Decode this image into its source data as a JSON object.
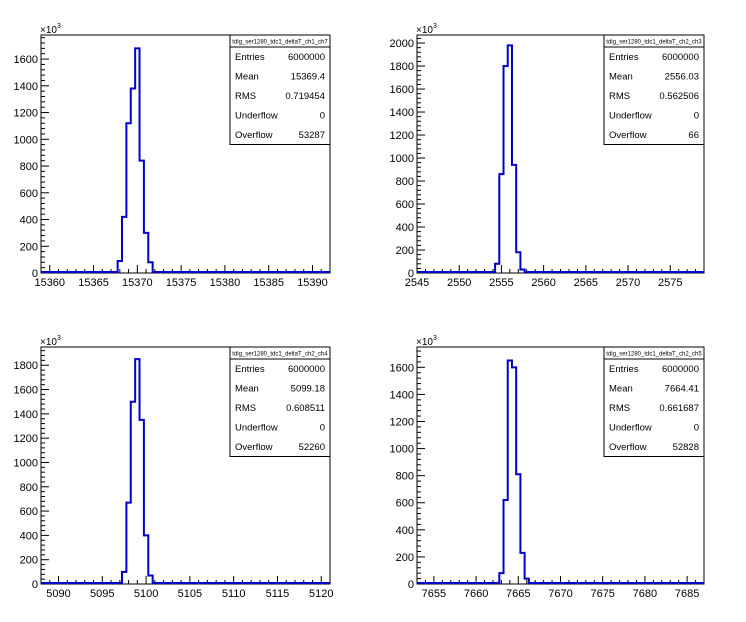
{
  "chart_data": [
    {
      "type": "bar",
      "title": "tdig_ser1280_tdc1_deltaT_ch1_ch7",
      "multiplier": "10",
      "multiplier_exp": "3",
      "xlim": [
        15359,
        15392
      ],
      "ylim": [
        0,
        1780
      ],
      "xticks": [
        15360,
        15365,
        15370,
        15375,
        15380,
        15385,
        15390
      ],
      "yticks": [
        0,
        200,
        400,
        600,
        800,
        1000,
        1200,
        1400,
        1600
      ],
      "bin_width": 0.5,
      "bins": [
        {
          "x": 15367.5,
          "y": 0
        },
        {
          "x": 15368.0,
          "y": 90
        },
        {
          "x": 15368.5,
          "y": 420
        },
        {
          "x": 15369.0,
          "y": 1120
        },
        {
          "x": 15369.5,
          "y": 1380
        },
        {
          "x": 15370.0,
          "y": 1680
        },
        {
          "x": 15370.5,
          "y": 840
        },
        {
          "x": 15371.0,
          "y": 300
        },
        {
          "x": 15371.5,
          "y": 80
        },
        {
          "x": 15372.0,
          "y": 0
        }
      ],
      "stats": [
        {
          "label": "Entries",
          "value": "6000000"
        },
        {
          "label": "Mean",
          "value": "15369.4"
        },
        {
          "label": "RMS",
          "value": "0.719454"
        },
        {
          "label": "Underflow",
          "value": "0"
        },
        {
          "label": "Overflow",
          "value": "53287"
        }
      ]
    },
    {
      "type": "bar",
      "title": "tdig_ser1280_tdc1_deltaT_ch2_ch3",
      "multiplier": "10",
      "multiplier_exp": "3",
      "xlim": [
        2545,
        2579
      ],
      "ylim": [
        0,
        2070
      ],
      "xticks": [
        2545,
        2550,
        2555,
        2560,
        2565,
        2570,
        2575
      ],
      "yticks": [
        0,
        200,
        400,
        600,
        800,
        1000,
        1200,
        1400,
        1600,
        1800,
        2000
      ],
      "bin_width": 0.5,
      "bins": [
        {
          "x": 2554.0,
          "y": 0
        },
        {
          "x": 2554.5,
          "y": 80
        },
        {
          "x": 2555.0,
          "y": 860
        },
        {
          "x": 2555.5,
          "y": 1800
        },
        {
          "x": 2556.0,
          "y": 1980
        },
        {
          "x": 2556.5,
          "y": 940
        },
        {
          "x": 2557.0,
          "y": 180
        },
        {
          "x": 2557.5,
          "y": 30
        },
        {
          "x": 2558.0,
          "y": 0
        }
      ],
      "stats": [
        {
          "label": "Entries",
          "value": "6000000"
        },
        {
          "label": "Mean",
          "value": "2556.03"
        },
        {
          "label": "RMS",
          "value": "0.562506"
        },
        {
          "label": "Underflow",
          "value": "0"
        },
        {
          "label": "Overflow",
          "value": "66"
        }
      ]
    },
    {
      "type": "bar",
      "title": "tdig_ser1280_tdc1_deltaT_ch2_ch4",
      "multiplier": "10",
      "multiplier_exp": "3",
      "xlim": [
        5088,
        5121
      ],
      "ylim": [
        0,
        1950
      ],
      "xticks": [
        5090,
        5095,
        5100,
        5105,
        5110,
        5115,
        5120
      ],
      "yticks": [
        0,
        200,
        400,
        600,
        800,
        1000,
        1200,
        1400,
        1600,
        1800
      ],
      "bin_width": 0.5,
      "bins": [
        {
          "x": 5097.0,
          "y": 0
        },
        {
          "x": 5097.5,
          "y": 100
        },
        {
          "x": 5098.0,
          "y": 670
        },
        {
          "x": 5098.5,
          "y": 1500
        },
        {
          "x": 5099.0,
          "y": 1850
        },
        {
          "x": 5099.5,
          "y": 1350
        },
        {
          "x": 5100.0,
          "y": 400
        },
        {
          "x": 5100.5,
          "y": 70
        },
        {
          "x": 5101.0,
          "y": 0
        }
      ],
      "stats": [
        {
          "label": "Entries",
          "value": "6000000"
        },
        {
          "label": "Mean",
          "value": "5099.18"
        },
        {
          "label": "RMS",
          "value": "0.608511"
        },
        {
          "label": "Underflow",
          "value": "0"
        },
        {
          "label": "Overflow",
          "value": "52260"
        }
      ]
    },
    {
      "type": "bar",
      "title": "tdig_ser1280_tdc1_deltaT_ch2_ch5",
      "multiplier": "10",
      "multiplier_exp": "3",
      "xlim": [
        7653,
        7687
      ],
      "ylim": [
        0,
        1750
      ],
      "xticks": [
        7655,
        7660,
        7665,
        7670,
        7675,
        7680,
        7685
      ],
      "yticks": [
        0,
        200,
        400,
        600,
        800,
        1000,
        1200,
        1400,
        1600
      ],
      "bin_width": 0.5,
      "bins": [
        {
          "x": 7662.5,
          "y": 0
        },
        {
          "x": 7663.0,
          "y": 80
        },
        {
          "x": 7663.5,
          "y": 620
        },
        {
          "x": 7664.0,
          "y": 1650
        },
        {
          "x": 7664.5,
          "y": 1600
        },
        {
          "x": 7665.0,
          "y": 810
        },
        {
          "x": 7665.5,
          "y": 230
        },
        {
          "x": 7666.0,
          "y": 40
        },
        {
          "x": 7666.5,
          "y": 0
        }
      ],
      "stats": [
        {
          "label": "Entries",
          "value": "6000000"
        },
        {
          "label": "Mean",
          "value": "7664.41"
        },
        {
          "label": "RMS",
          "value": "0.661687"
        },
        {
          "label": "Underflow",
          "value": "0"
        },
        {
          "label": "Overflow",
          "value": "52828"
        }
      ]
    }
  ]
}
